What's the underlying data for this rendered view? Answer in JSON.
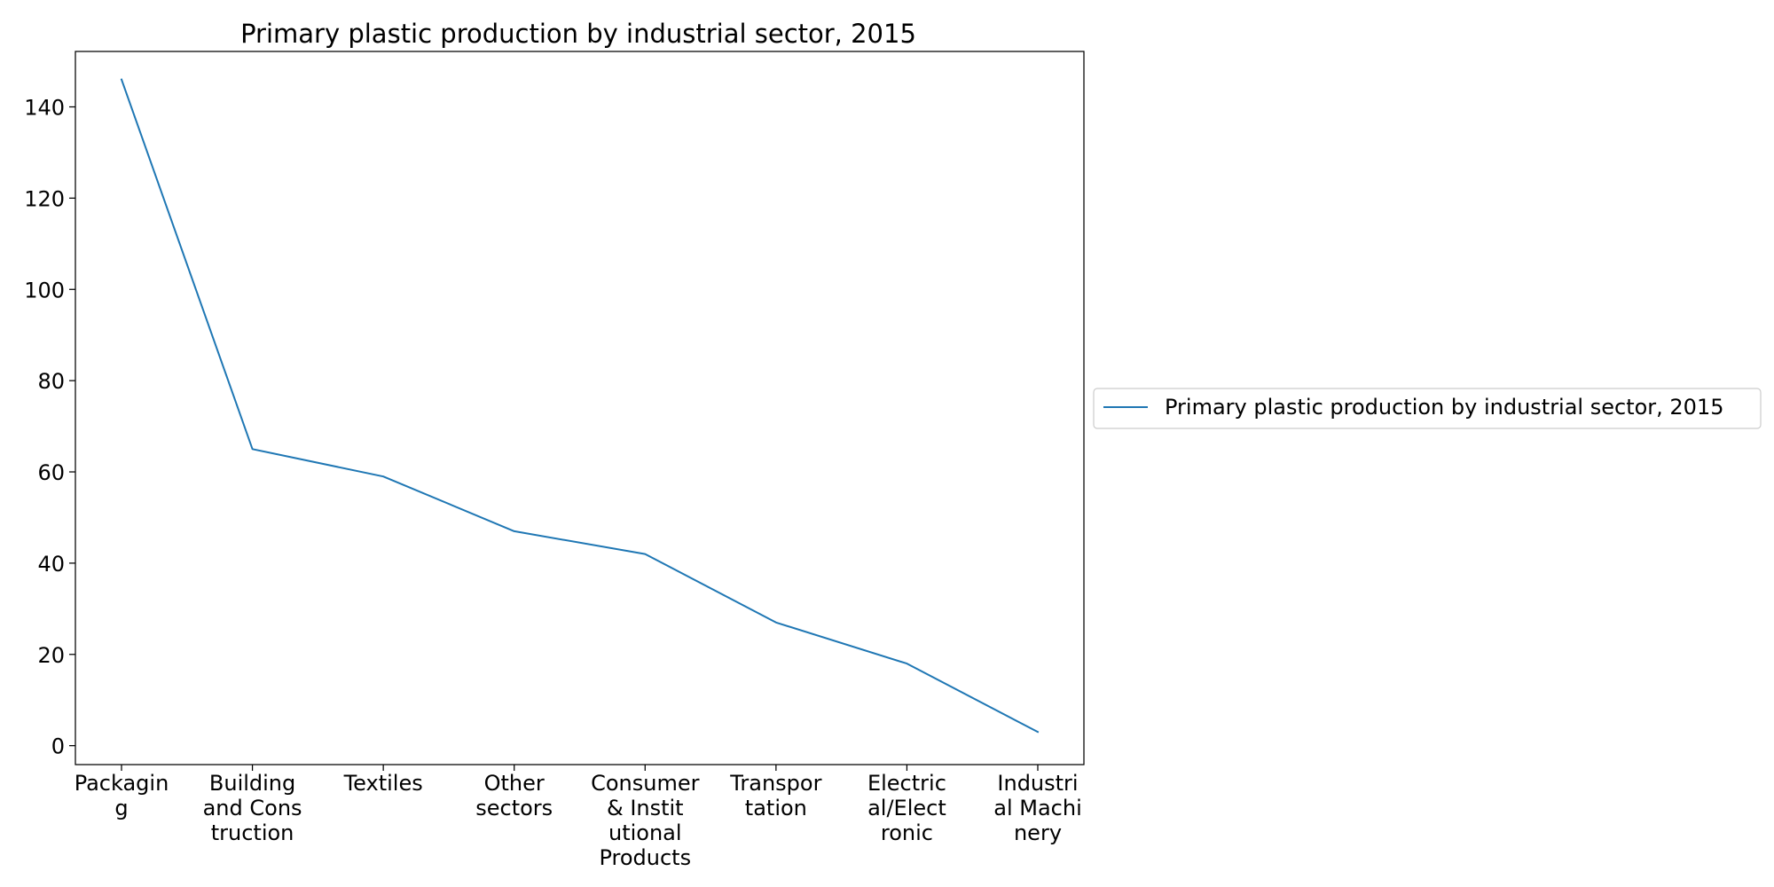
{
  "chart_data": {
    "type": "line",
    "title": "Primary plastic production by industrial sector, 2015",
    "xlabel": "",
    "ylabel": "",
    "categories": [
      [
        "Packagin",
        "g"
      ],
      [
        "Building",
        "and Cons",
        "truction"
      ],
      [
        "Textiles"
      ],
      [
        "Other",
        "sectors"
      ],
      [
        "Consumer",
        "& Instit",
        "utional",
        "Products"
      ],
      [
        "Transpor",
        "tation"
      ],
      [
        "Electric",
        "al/Elect",
        "ronic"
      ],
      [
        "Industri",
        "al Machi",
        "nery"
      ]
    ],
    "series": [
      {
        "name": "Primary plastic production by industrial sector, 2015",
        "values": [
          146,
          65,
          59,
          47,
          42,
          27,
          18,
          3
        ],
        "color": "#1f77b4"
      }
    ],
    "yticks": [
      0,
      20,
      40,
      60,
      80,
      100,
      120,
      140
    ],
    "ylim": [
      -4.15,
      152.15
    ],
    "grid": false,
    "legend": "right-outside"
  }
}
